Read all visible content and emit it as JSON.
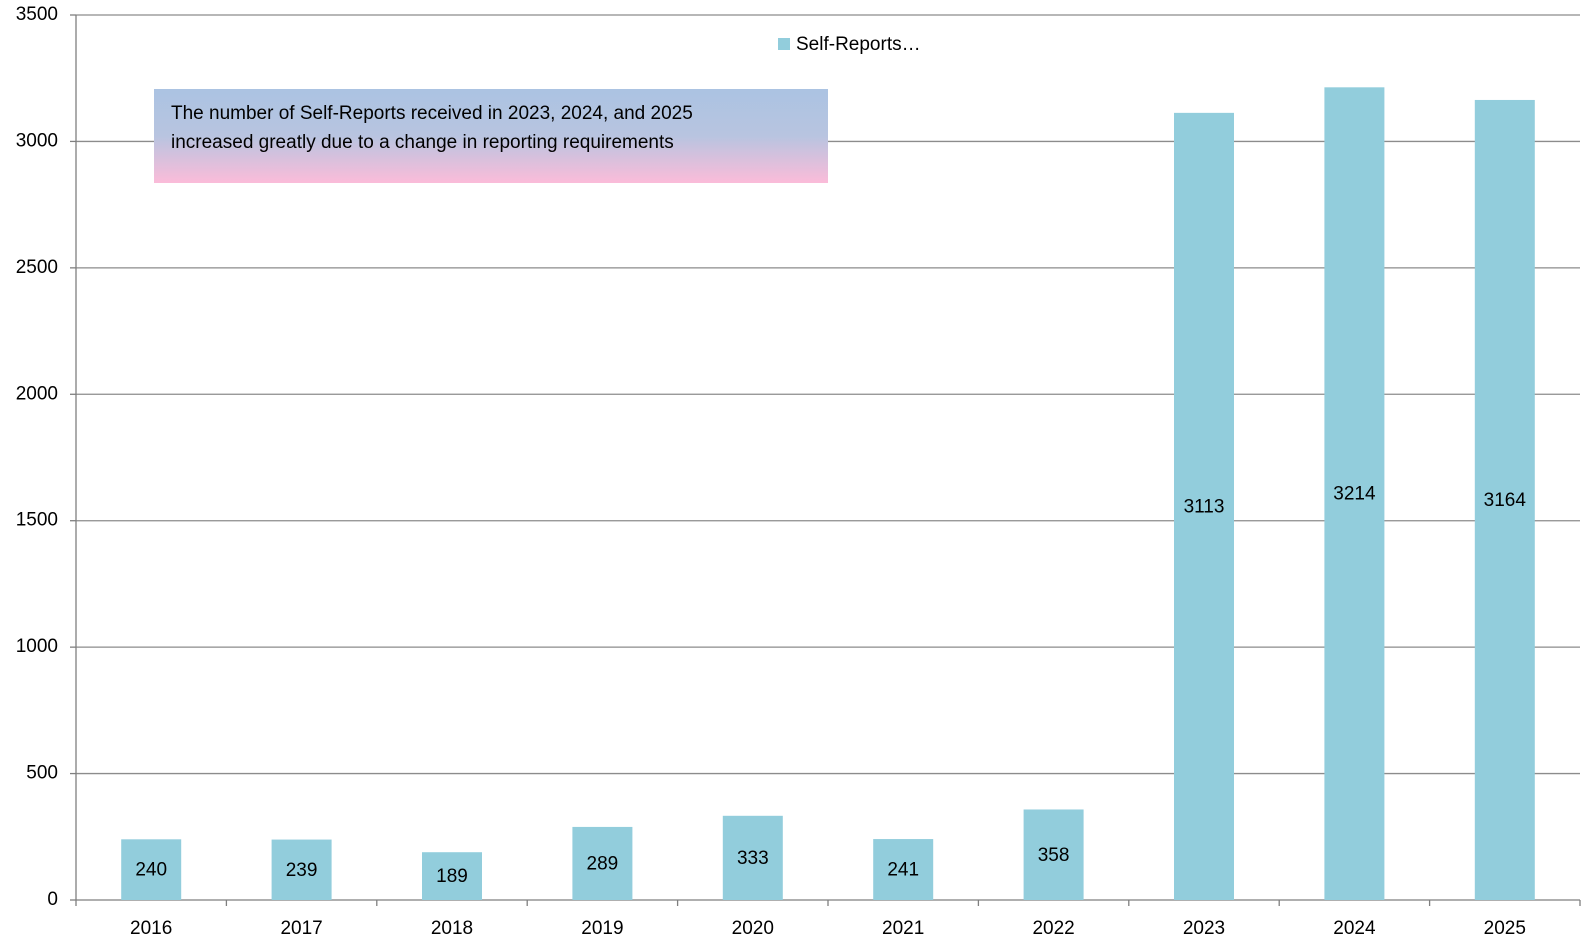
{
  "chart_data": {
    "type": "bar",
    "categories": [
      "2016",
      "2017",
      "2018",
      "2019",
      "2020",
      "2021",
      "2022",
      "2023",
      "2024",
      "2025"
    ],
    "series": [
      {
        "name": "Self-Reports…",
        "color": "#92cddc",
        "values": [
          240,
          239,
          189,
          289,
          333,
          241,
          358,
          3113,
          3214,
          3164
        ]
      }
    ],
    "ylim": [
      0,
      3500
    ],
    "yticks": [
      0,
      500,
      1000,
      1500,
      2000,
      2500,
      3000,
      3500
    ],
    "grid": true,
    "legend": "top",
    "annotation": [
      "The number of Self-Reports received in 2023, 2024, and 2025",
      "increased greatly due to a change in reporting requirements"
    ]
  }
}
